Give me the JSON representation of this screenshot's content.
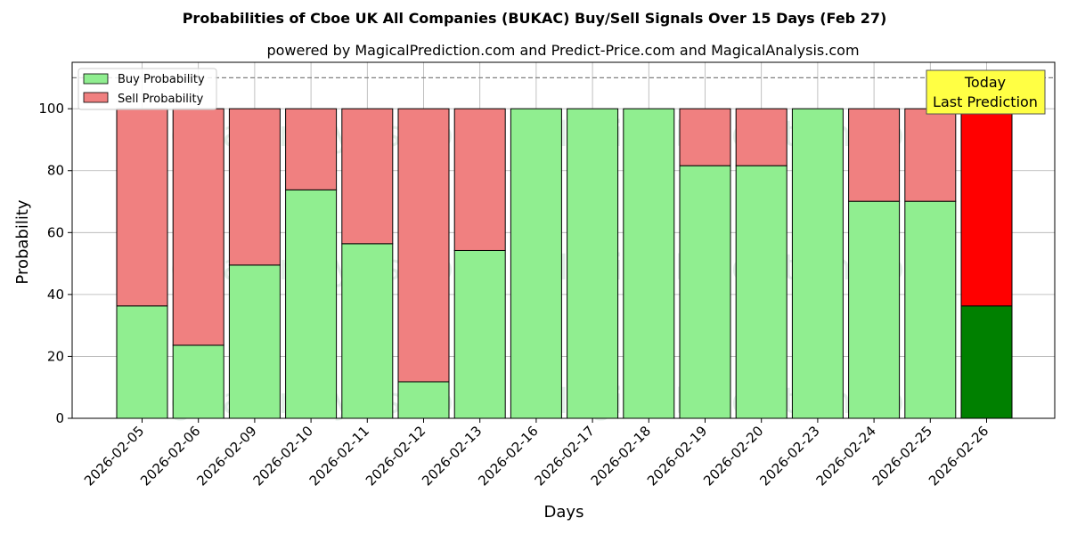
{
  "chart_data": {
    "type": "bar",
    "stacked": true,
    "title": "Probabilities of Cboe UK All Companies (BUKAC) Buy/Sell Signals Over 15 Days (Feb 27)",
    "subtitle": "powered by MagicalPrediction.com and Predict-Price.com and MagicalAnalysis.com",
    "xlabel": "Days",
    "ylabel": "Probability",
    "ylim": [
      0,
      115
    ],
    "yticks": [
      0,
      20,
      40,
      60,
      80,
      100
    ],
    "grid": true,
    "legend_position": "top-left",
    "reference_line": 110,
    "categories": [
      "2026-02-05",
      "2026-02-06",
      "2026-02-09",
      "2026-02-10",
      "2026-02-11",
      "2026-02-12",
      "2026-02-13",
      "2026-02-16",
      "2026-02-17",
      "2026-02-18",
      "2026-02-19",
      "2026-02-20",
      "2026-02-23",
      "2026-02-24",
      "2026-02-25",
      "2026-02-26"
    ],
    "series": [
      {
        "name": "Buy Probability",
        "color": "#90ee90",
        "values": [
          36.3,
          23.6,
          49.5,
          73.8,
          56.4,
          11.8,
          54.2,
          100,
          100,
          100,
          81.6,
          81.6,
          100,
          70.1,
          70.1,
          36.3
        ]
      },
      {
        "name": "Sell Probability",
        "color": "#f08080",
        "values": [
          63.7,
          76.4,
          50.5,
          26.2,
          43.6,
          88.2,
          45.8,
          0,
          0,
          0,
          18.4,
          18.4,
          0,
          29.9,
          29.9,
          63.7
        ]
      }
    ],
    "highlight": {
      "index": 15,
      "buy_color": "#008000",
      "sell_color": "#ff0000"
    },
    "annotation": {
      "line1": "Today",
      "line2": "Last Prediction",
      "background": "#ffff44"
    },
    "watermarks": [
      "MagicalAnalysis.com",
      "MagicalPrediction.com"
    ]
  }
}
